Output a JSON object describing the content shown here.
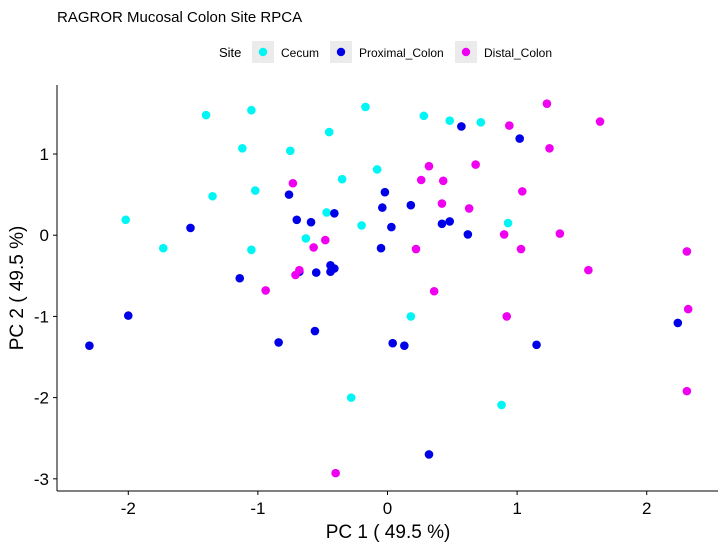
{
  "chart_data": {
    "type": "scatter",
    "title": "RAGROR Mucosal Colon Site RPCA",
    "xlabel": "PC 1 ( 49.5 %)",
    "ylabel": "PC 2 ( 49.5 %)",
    "xlim": [
      -2.55,
      2.55
    ],
    "ylim": [
      -3.15,
      1.85
    ],
    "xticks": [
      -2,
      -1,
      0,
      1,
      2
    ],
    "yticks": [
      -3,
      -2,
      -1,
      0,
      1
    ],
    "xtick_labels": [
      "-2",
      "-1",
      "0",
      "1",
      "2"
    ],
    "ytick_labels": [
      "-3",
      "-2",
      "-1",
      "0",
      "1"
    ],
    "grid": false,
    "legend": {
      "title": "Site",
      "position": "top"
    },
    "series": [
      {
        "name": "Cecum",
        "color": "#00f5f5",
        "points": [
          [
            -1.4,
            1.48
          ],
          [
            -1.05,
            1.54
          ],
          [
            -0.17,
            1.58
          ],
          [
            0.28,
            1.47
          ],
          [
            0.48,
            1.41
          ],
          [
            0.72,
            1.39
          ],
          [
            -0.45,
            1.27
          ],
          [
            -1.12,
            1.07
          ],
          [
            -0.75,
            1.04
          ],
          [
            -0.08,
            0.81
          ],
          [
            -0.35,
            0.69
          ],
          [
            -1.02,
            0.55
          ],
          [
            -1.35,
            0.48
          ],
          [
            -0.47,
            0.28
          ],
          [
            -2.02,
            0.19
          ],
          [
            0.93,
            0.15
          ],
          [
            -0.2,
            0.12
          ],
          [
            -1.73,
            -0.16
          ],
          [
            -1.05,
            -0.18
          ],
          [
            -0.63,
            -0.04
          ],
          [
            0.18,
            -1.0
          ],
          [
            -0.28,
            -2.0
          ],
          [
            0.88,
            -2.09
          ]
        ]
      },
      {
        "name": "Proximal_Colon",
        "color": "#0000e8",
        "points": [
          [
            0.57,
            1.34
          ],
          [
            1.02,
            1.19
          ],
          [
            -0.76,
            0.5
          ],
          [
            -0.02,
            0.53
          ],
          [
            -0.7,
            0.19
          ],
          [
            -0.59,
            0.16
          ],
          [
            -0.41,
            0.27
          ],
          [
            -0.04,
            0.34
          ],
          [
            0.18,
            0.37
          ],
          [
            0.03,
            0.1
          ],
          [
            0.42,
            0.14
          ],
          [
            0.48,
            0.17
          ],
          [
            0.62,
            0.01
          ],
          [
            -1.52,
            0.09
          ],
          [
            -0.05,
            -0.16
          ],
          [
            -1.14,
            -0.53
          ],
          [
            -0.68,
            -0.45
          ],
          [
            -0.55,
            -0.46
          ],
          [
            -0.44,
            -0.37
          ],
          [
            -0.41,
            -0.41
          ],
          [
            -0.44,
            -0.45
          ],
          [
            -2.0,
            -0.99
          ],
          [
            -0.56,
            -1.18
          ],
          [
            -0.84,
            -1.32
          ],
          [
            0.04,
            -1.33
          ],
          [
            0.13,
            -1.36
          ],
          [
            1.15,
            -1.35
          ],
          [
            2.24,
            -1.08
          ],
          [
            -2.3,
            -1.36
          ],
          [
            0.32,
            -2.7
          ]
        ]
      },
      {
        "name": "Distal_Colon",
        "color": "#f000f0",
        "points": [
          [
            1.23,
            1.62
          ],
          [
            1.64,
            1.4
          ],
          [
            0.94,
            1.35
          ],
          [
            1.25,
            1.07
          ],
          [
            0.68,
            0.87
          ],
          [
            0.32,
            0.85
          ],
          [
            0.26,
            0.68
          ],
          [
            0.43,
            0.67
          ],
          [
            -0.73,
            0.64
          ],
          [
            1.04,
            0.54
          ],
          [
            0.42,
            0.39
          ],
          [
            0.63,
            0.33
          ],
          [
            0.9,
            0.01
          ],
          [
            1.33,
            0.02
          ],
          [
            0.22,
            -0.17
          ],
          [
            1.03,
            -0.17
          ],
          [
            -0.48,
            -0.06
          ],
          [
            -0.57,
            -0.15
          ],
          [
            -0.68,
            -0.43
          ],
          [
            -0.71,
            -0.49
          ],
          [
            -0.94,
            -0.68
          ],
          [
            0.36,
            -0.69
          ],
          [
            1.55,
            -0.43
          ],
          [
            2.31,
            -0.2
          ],
          [
            2.32,
            -0.91
          ],
          [
            0.92,
            -1.0
          ],
          [
            2.31,
            -1.92
          ],
          [
            -0.4,
            -2.93
          ]
        ]
      }
    ]
  }
}
